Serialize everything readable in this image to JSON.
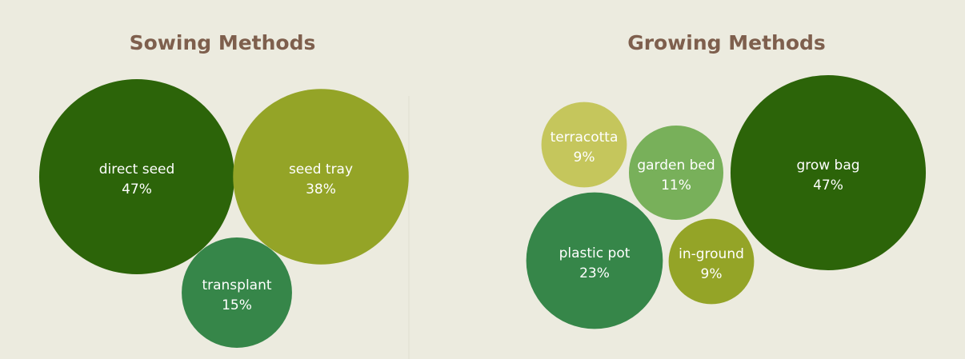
{
  "colors": {
    "background": "#ecebdf",
    "title": "#7e5f4d",
    "dark_green": "#2c6409",
    "olive": "#94a427",
    "mid_green": "#368649",
    "light_olive": "#c5c65c",
    "leaf_green": "#78b05a"
  },
  "chart_data": [
    {
      "type": "bubble",
      "title": "Sowing Methods",
      "values_unit": "%",
      "items": [
        {
          "label": "direct seed",
          "value": 47,
          "display": "47%",
          "color": "#2c6409"
        },
        {
          "label": "seed tray",
          "value": 38,
          "display": "38%",
          "color": "#94a427"
        },
        {
          "label": "transplant",
          "value": 15,
          "display": "15%",
          "color": "#368649"
        }
      ]
    },
    {
      "type": "bubble",
      "title": "Growing Methods",
      "values_unit": "%",
      "items": [
        {
          "label": "terracotta",
          "value": 9,
          "display": "9%",
          "color": "#c5c65c"
        },
        {
          "label": "garden bed",
          "value": 11,
          "display": "11%",
          "color": "#78b05a"
        },
        {
          "label": "grow bag",
          "value": 47,
          "display": "47%",
          "color": "#2c6409"
        },
        {
          "label": "plastic pot",
          "value": 23,
          "display": "23%",
          "color": "#368649"
        },
        {
          "label": "in-ground",
          "value": 9,
          "display": "9%",
          "color": "#94a427"
        }
      ]
    }
  ]
}
